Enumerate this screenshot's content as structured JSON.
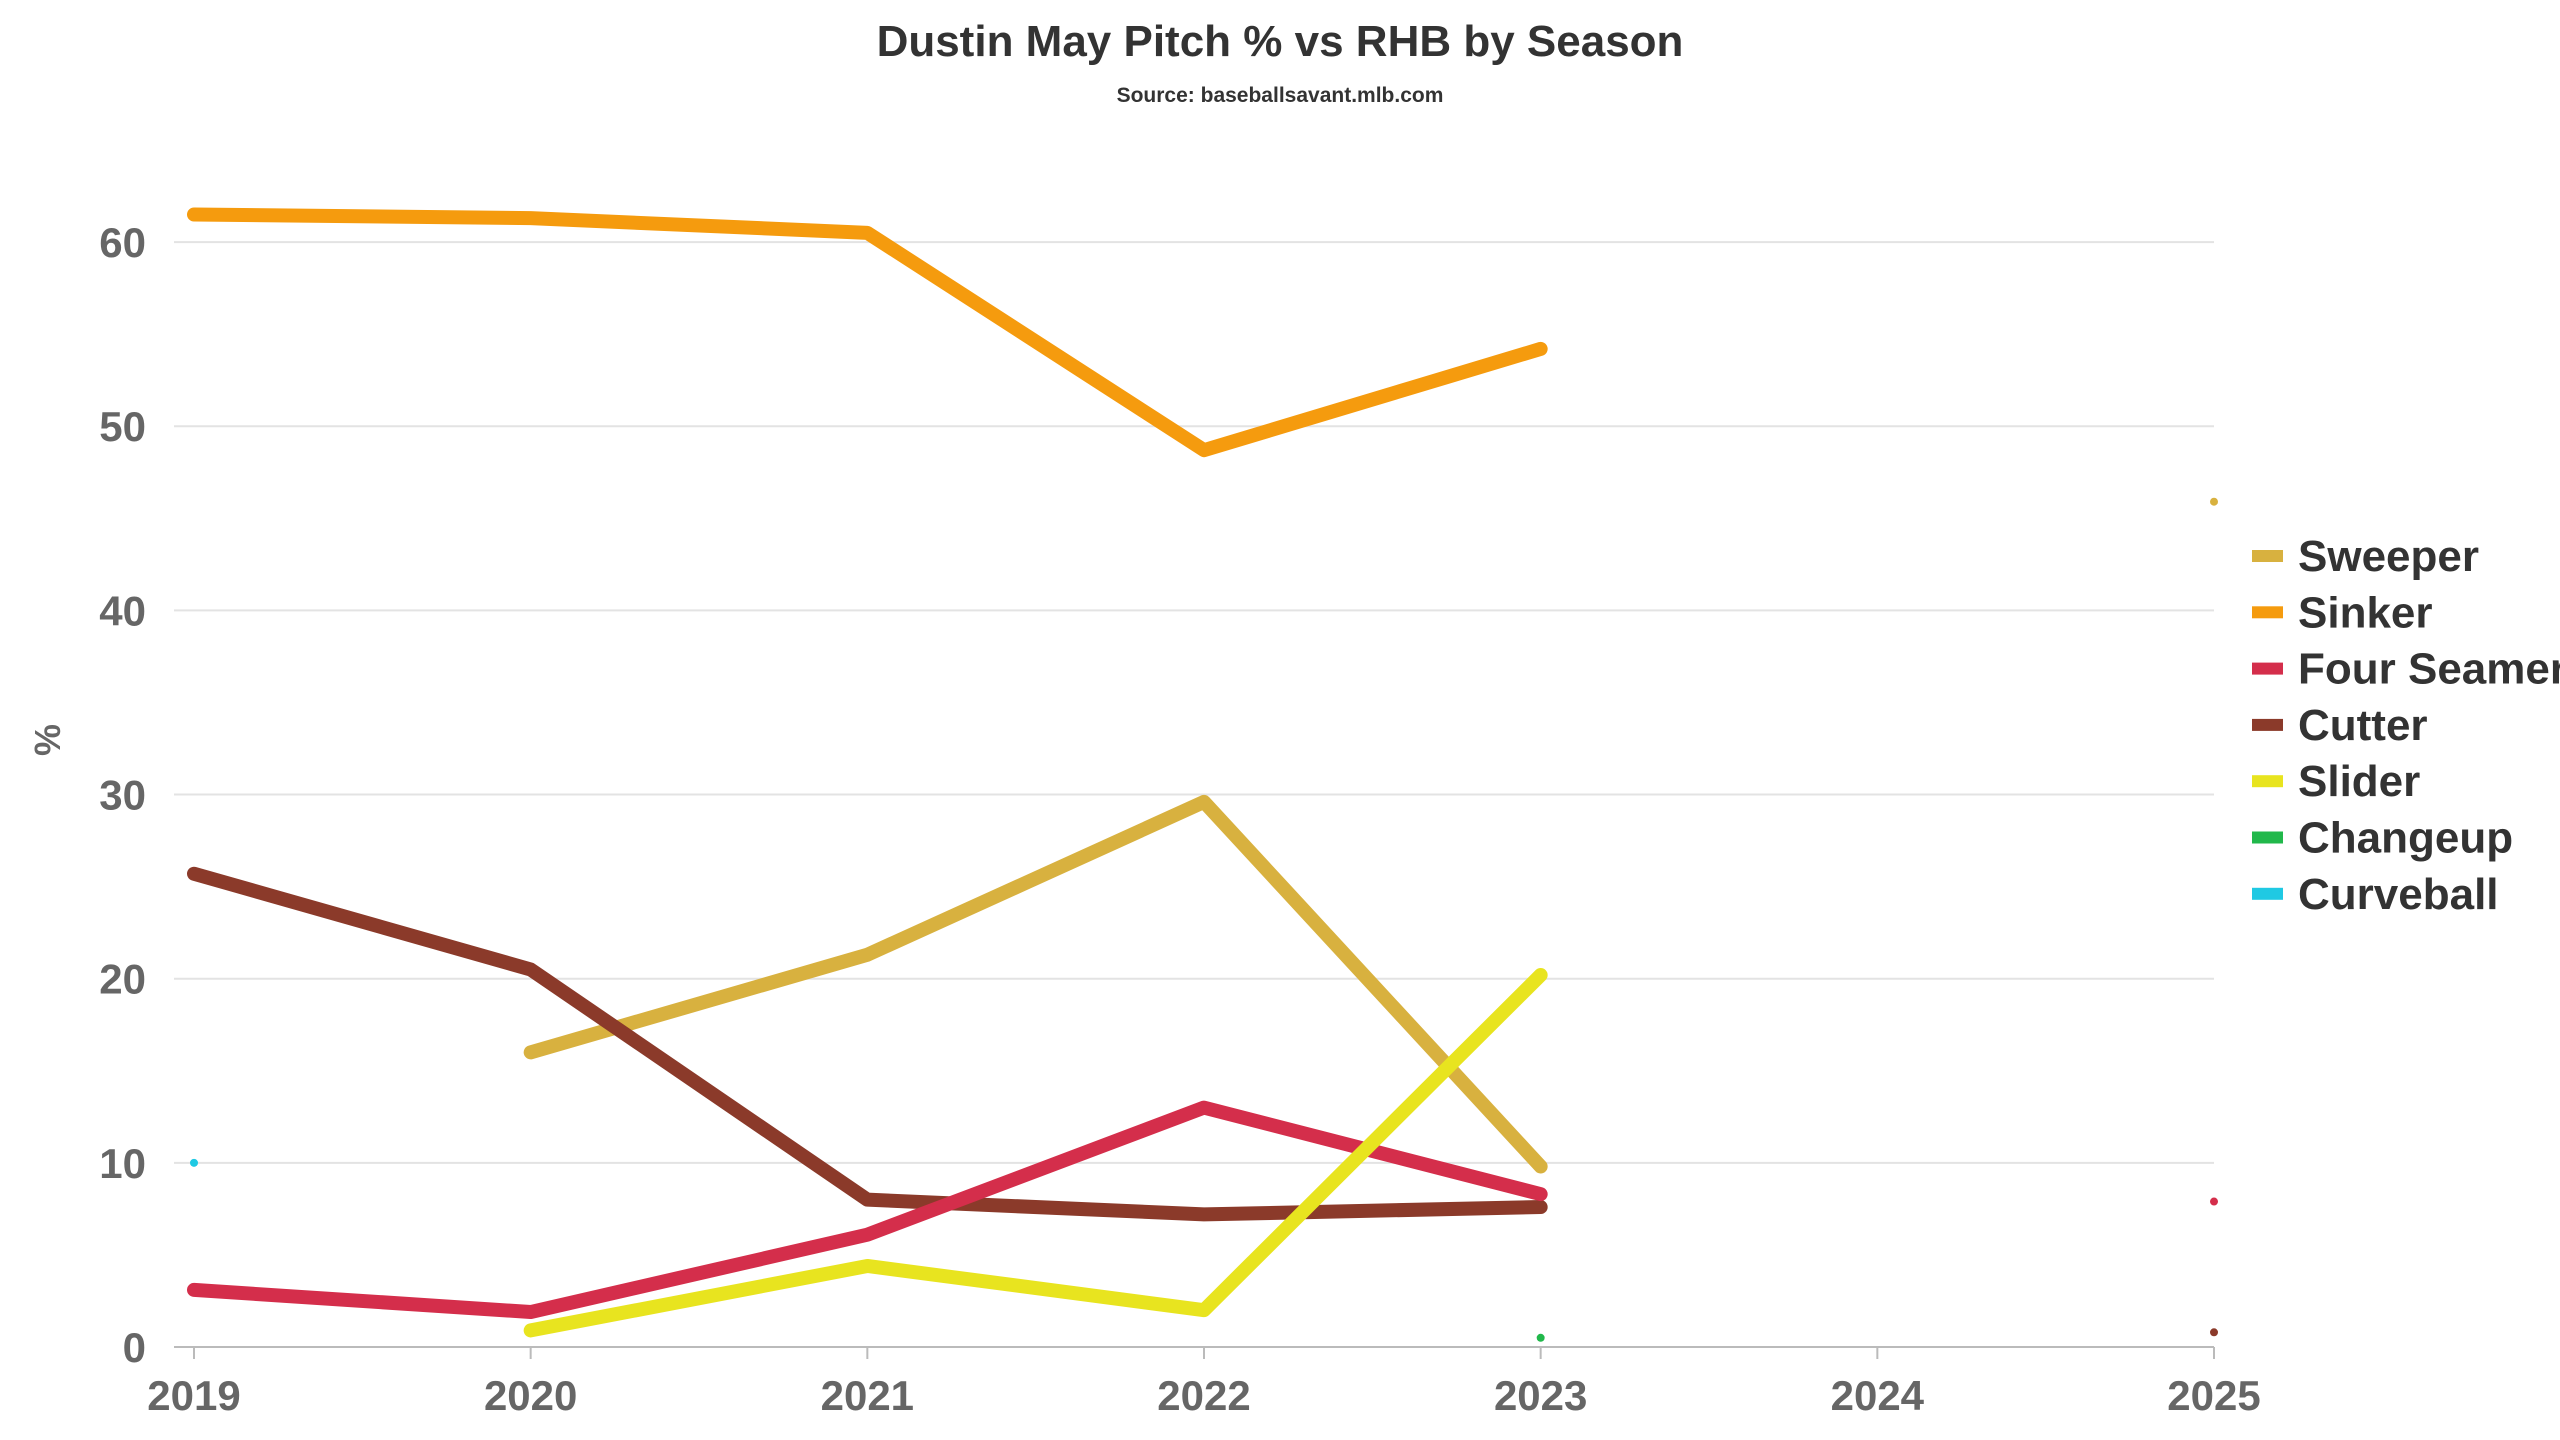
{
  "chart_data": {
    "type": "line",
    "title": "Dustin May Pitch % vs RHB by Season",
    "subtitle": "Source: baseballsavant.mlb.com",
    "xlabel": "",
    "ylabel": "%",
    "x": [
      2019,
      2020,
      2021,
      2022,
      2023,
      2024,
      2025
    ],
    "x_ticks": [
      "2019",
      "2020",
      "2021",
      "2022",
      "2023",
      "2024",
      "2025"
    ],
    "ylim": [
      0,
      65
    ],
    "y_ticks": [
      "0",
      "10",
      "20",
      "30",
      "40",
      "50",
      "60"
    ],
    "grid": true,
    "legend_position": "right",
    "series": [
      {
        "name": "Sweeper",
        "color": "#d8b13f",
        "values": [
          null,
          16.0,
          21.3,
          29.6,
          9.8,
          null,
          45.9
        ]
      },
      {
        "name": "Sinker",
        "color": "#f59b0e",
        "values": [
          61.5,
          61.3,
          60.5,
          48.7,
          54.2,
          null,
          null
        ]
      },
      {
        "name": "Four Seamer",
        "color": "#d42e4b",
        "values": [
          3.1,
          1.9,
          6.1,
          13.0,
          8.3,
          null,
          7.9
        ]
      },
      {
        "name": "Cutter",
        "color": "#8b3a2a",
        "values": [
          25.7,
          20.5,
          8.0,
          7.2,
          7.6,
          null,
          0.8
        ]
      },
      {
        "name": "Slider",
        "color": "#e8e41f",
        "values": [
          null,
          0.9,
          4.4,
          2.0,
          20.2,
          null,
          null
        ]
      },
      {
        "name": "Changeup",
        "color": "#21b84b",
        "values": [
          null,
          null,
          null,
          null,
          0.5,
          null,
          null
        ]
      },
      {
        "name": "Curveball",
        "color": "#1fc9e3",
        "values": [
          10.0,
          null,
          null,
          null,
          null,
          null,
          null
        ]
      }
    ]
  }
}
